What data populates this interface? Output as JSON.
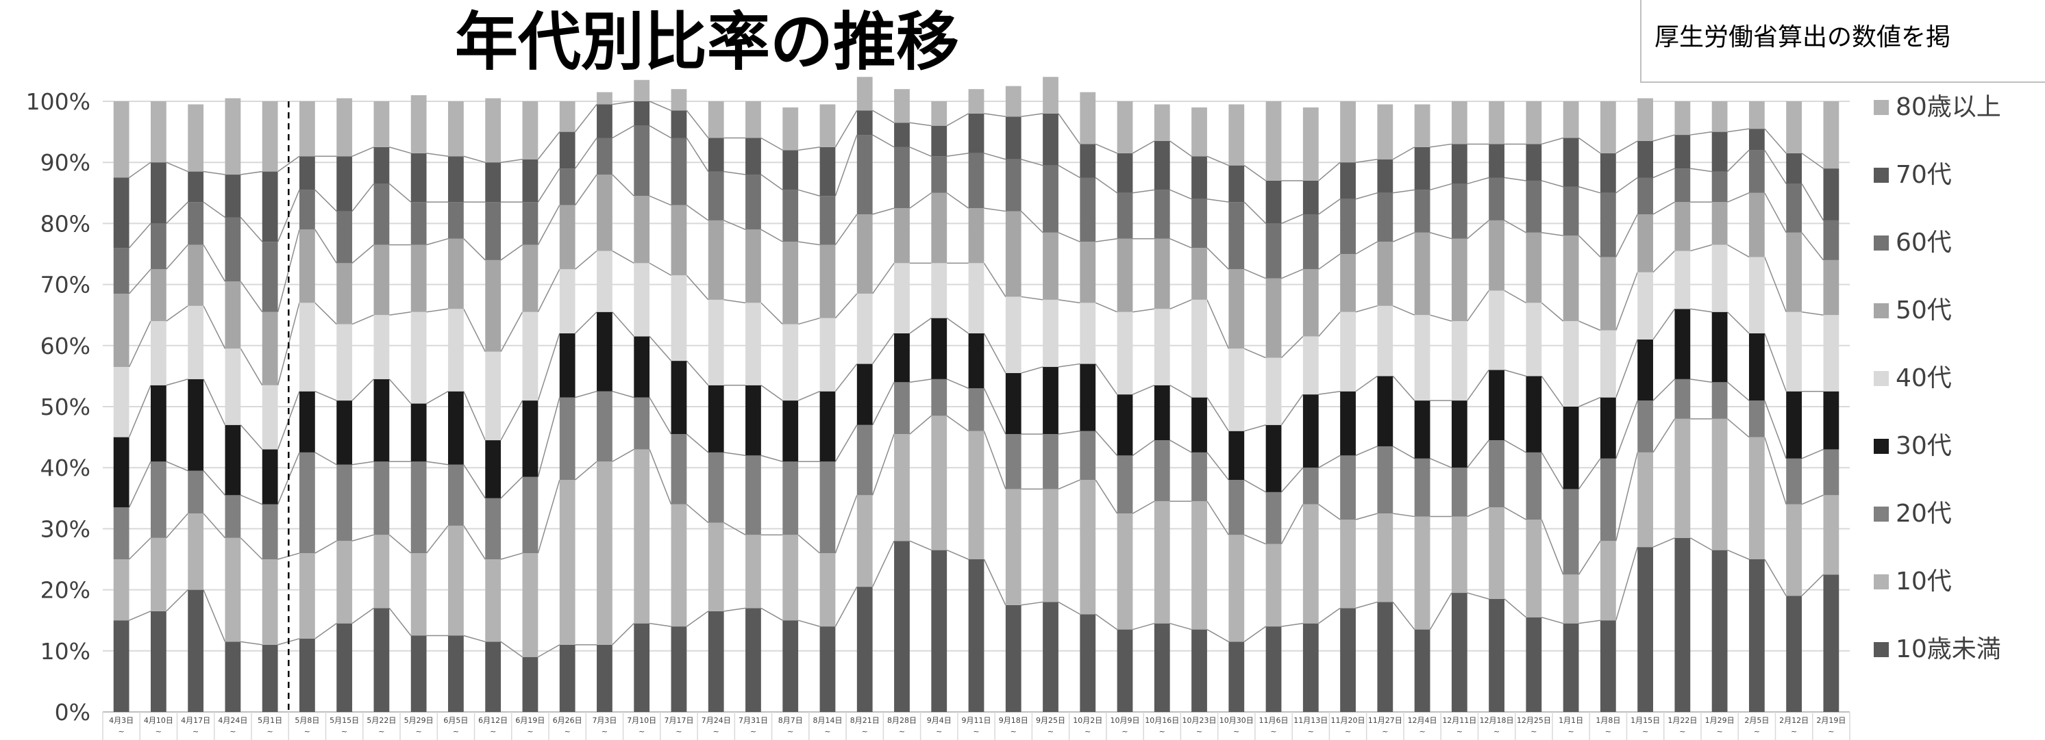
{
  "chart_data": {
    "type": "bar",
    "stacked": true,
    "normalized": true,
    "title": "年代別比率の推移",
    "note": "厚生労働省算出の数値を掲",
    "xlabel": "",
    "ylabel": "",
    "ylim": [
      0,
      100
    ],
    "yticks": [
      "0%",
      "10%",
      "20%",
      "30%",
      "40%",
      "50%",
      "60%",
      "70%",
      "80%",
      "90%",
      "100%"
    ],
    "grid": true,
    "legend": "right",
    "series_lines": true,
    "divider_after_category": 5,
    "categories": [
      "4月3日",
      "4月10日",
      "4月17日",
      "4月24日",
      "5月1日",
      "5月8日",
      "5月15日",
      "5月22日",
      "5月29日",
      "6月5日",
      "6月12日",
      "6月19日",
      "6月26日",
      "7月3日",
      "7月10日",
      "7月17日",
      "7月24日",
      "7月31日",
      "8月7日",
      "8月14日",
      "8月21日",
      "8月28日",
      "9月4日",
      "9月11日",
      "9月18日",
      "9月25日",
      "10月2日",
      "10月9日",
      "10月16日",
      "10月23日",
      "10月30日",
      "11月6日",
      "11月13日",
      "11月20日",
      "11月27日",
      "12月4日",
      "12月11日",
      "12月18日",
      "12月25日",
      "1月1日",
      "1月8日",
      "1月15日",
      "1月22日",
      "1月29日",
      "2月5日",
      "2月12日",
      "2月19日"
    ],
    "category_suffix": "~",
    "series": [
      {
        "name": "10歳未満",
        "color": "#595959",
        "values": [
          15,
          16.5,
          20,
          11.5,
          11,
          12,
          14.5,
          17,
          12.5,
          12.5,
          11.5,
          9,
          11,
          11,
          14.5,
          14,
          16.5,
          17,
          15,
          14,
          20.5,
          28,
          26.5,
          25,
          17.5,
          18,
          16,
          13.5,
          14.5,
          13.5,
          11.5,
          14,
          14.5,
          17,
          18,
          13.5,
          19.5,
          18.5,
          15.5,
          14.5,
          15,
          27,
          28.5,
          26.5,
          25,
          19,
          22.5
        ]
      },
      {
        "name": "10代",
        "color": "#b3b3b3",
        "values": [
          10,
          12,
          12.5,
          17,
          14,
          14,
          13.5,
          12,
          13.5,
          18,
          13.5,
          17,
          27,
          30,
          28.5,
          20,
          14.5,
          12,
          14,
          12,
          15,
          17.5,
          22,
          21,
          19,
          18.5,
          22,
          19,
          20,
          21,
          17.5,
          13.5,
          19.5,
          14.5,
          14.5,
          18.5,
          12.5,
          15,
          16,
          8,
          13,
          15.5,
          19.5,
          21.5,
          20,
          15,
          13
        ]
      },
      {
        "name": "20代",
        "color": "#808080",
        "values": [
          8.5,
          12.5,
          7,
          7,
          9,
          16.5,
          12.5,
          12,
          15,
          10,
          10,
          12.5,
          13.5,
          11.5,
          8.5,
          11.5,
          11.5,
          13,
          12,
          15,
          11.5,
          8.5,
          6,
          7,
          9,
          9,
          8,
          9.5,
          10,
          8,
          9,
          8.5,
          6,
          10.5,
          11,
          9.5,
          8,
          11,
          11,
          14,
          13.5,
          8.5,
          6.5,
          6,
          6,
          7.5,
          7.5
        ]
      },
      {
        "name": "30代",
        "color": "#1a1a1a",
        "values": [
          11.5,
          12.5,
          15,
          11.5,
          9,
          10,
          10.5,
          13.5,
          9.5,
          12,
          9.5,
          12.5,
          10.5,
          13,
          10,
          12,
          11,
          11.5,
          10,
          11.5,
          10,
          8,
          10,
          9,
          10,
          11,
          11,
          10,
          9,
          9,
          8,
          11,
          12,
          10.5,
          11.5,
          9.5,
          11,
          11.5,
          12.5,
          13.5,
          10,
          10,
          11.5,
          11.5,
          11,
          11,
          9.5
        ]
      },
      {
        "name": "40代",
        "color": "#d9d9d9",
        "values": [
          11.5,
          10.5,
          12,
          12.5,
          10.5,
          14.5,
          12.5,
          10.5,
          15,
          13.5,
          14.5,
          14.5,
          10.5,
          10,
          12,
          14,
          14,
          13.5,
          12.5,
          12,
          11.5,
          11.5,
          9,
          11.5,
          12.5,
          11,
          10,
          13.5,
          12.5,
          16,
          13.5,
          11,
          9.5,
          13,
          11.5,
          14,
          13,
          13,
          12,
          14,
          11,
          11,
          9.5,
          11,
          12.5,
          13,
          12.5
        ]
      },
      {
        "name": "50代",
        "color": "#a6a6a6",
        "values": [
          12,
          8.5,
          10,
          11,
          12,
          12,
          10,
          11.5,
          11,
          11.5,
          15,
          11,
          10.5,
          12.5,
          11,
          11.5,
          13,
          12,
          13.5,
          12,
          13,
          9,
          11.5,
          9,
          14,
          11,
          10,
          12,
          11.5,
          8.5,
          13,
          13,
          11,
          9.5,
          10.5,
          13.5,
          13.5,
          11.5,
          11.5,
          14,
          12,
          9.5,
          8,
          7,
          10.5,
          13,
          9
        ]
      },
      {
        "name": "60代",
        "color": "#737373",
        "values": [
          7.5,
          7.5,
          7,
          10.5,
          11.5,
          6.5,
          8.5,
          10,
          7,
          6,
          9.5,
          7,
          6,
          6,
          11.5,
          11,
          8,
          9,
          8.5,
          8,
          13,
          10,
          6,
          9,
          8.5,
          11,
          10.5,
          7.5,
          8,
          8,
          11,
          9,
          9,
          9,
          8,
          7,
          9,
          7,
          8.5,
          8,
          10.5,
          6,
          5.5,
          5,
          7,
          8,
          6.5
        ]
      },
      {
        "name": "70代",
        "color": "#595959",
        "values": [
          11.5,
          10,
          5,
          7,
          11.5,
          5.5,
          9,
          6,
          8,
          7.5,
          6.5,
          7,
          6,
          5.5,
          4,
          4.5,
          5.5,
          6,
          6.5,
          8,
          4,
          4,
          5,
          6.5,
          7,
          8.5,
          5.5,
          6.5,
          8,
          7,
          6,
          7,
          5.5,
          6,
          5.5,
          7,
          6.5,
          5.5,
          6,
          8,
          6.5,
          6,
          5.5,
          6.5,
          3.5,
          5,
          8.5
        ]
      },
      {
        "name": "80歳以上",
        "color": "#b3b3b3",
        "values": [
          12.5,
          10,
          11,
          12.5,
          11.5,
          9,
          9.5,
          7.5,
          9.5,
          9,
          10.5,
          9.5,
          5,
          2,
          3.5,
          3.5,
          6,
          6,
          7,
          7,
          5.5,
          5.5,
          4,
          4,
          5,
          6,
          8.5,
          8.5,
          6,
          8,
          10,
          13,
          12,
          10,
          9,
          7,
          7,
          7,
          7,
          6,
          8.5,
          7,
          5.5,
          5,
          4.5,
          8.5,
          11
        ]
      }
    ]
  }
}
